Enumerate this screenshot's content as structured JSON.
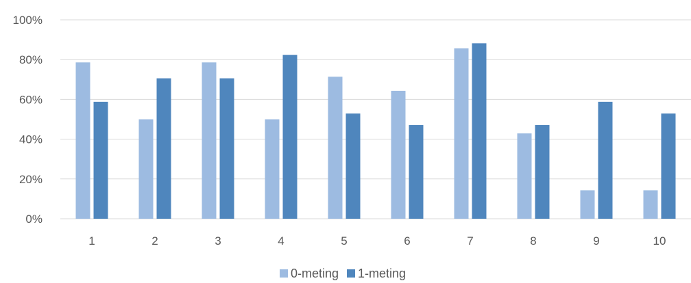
{
  "chart_data": {
    "type": "bar",
    "categories": [
      "1",
      "2",
      "3",
      "4",
      "5",
      "6",
      "7",
      "8",
      "9",
      "10"
    ],
    "series": [
      {
        "name": "0-meting",
        "color": "#9dbbe1",
        "values": [
          0.786,
          0.5,
          0.786,
          0.5,
          0.714,
          0.643,
          0.857,
          0.429,
          0.143,
          0.143
        ]
      },
      {
        "name": "1-meting",
        "color": "#4f86bd",
        "values": [
          0.588,
          0.706,
          0.706,
          0.824,
          0.529,
          0.471,
          0.882,
          0.471,
          0.588,
          0.529
        ]
      }
    ],
    "ylim": [
      0,
      1
    ],
    "yticks": [
      "0%",
      "20%",
      "40%",
      "60%",
      "80%",
      "100%"
    ],
    "grid": true,
    "legend_position": "bottom",
    "title": "",
    "xlabel": "",
    "ylabel": ""
  }
}
